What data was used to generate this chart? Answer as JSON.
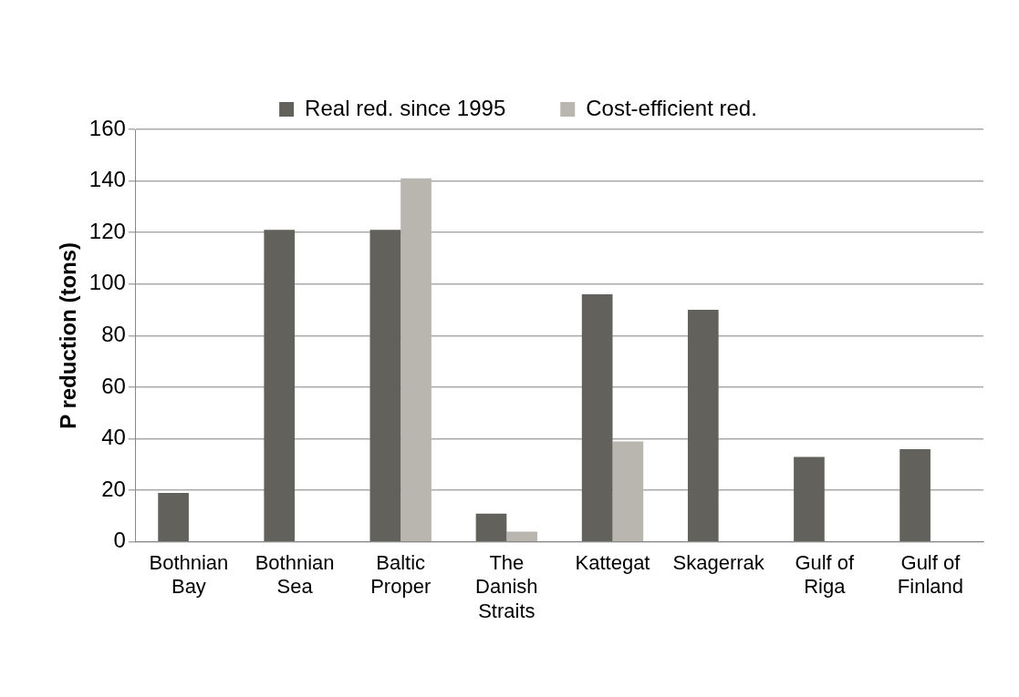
{
  "chart_data": {
    "type": "bar",
    "ylabel": "P reduction (tons)",
    "categories": [
      "Bothnian Bay",
      "Bothnian Sea",
      "Baltic Proper",
      "The Danish Straits",
      "Kattegat",
      "Skagerrak",
      "Gulf of Riga",
      "Gulf of Finland"
    ],
    "series": [
      {
        "name": "Real red. since 1995",
        "color": "#62615b",
        "values": [
          19,
          121,
          121,
          11,
          96,
          90,
          33,
          36
        ]
      },
      {
        "name": "Cost-efficient red.",
        "color": "#b9b6af",
        "values": [
          null,
          null,
          141,
          4,
          39,
          null,
          null,
          null
        ]
      }
    ],
    "ylim": [
      0,
      160
    ],
    "yticks": [
      0,
      20,
      40,
      60,
      80,
      100,
      120,
      140,
      160
    ],
    "grid": "y",
    "legend": "top"
  }
}
